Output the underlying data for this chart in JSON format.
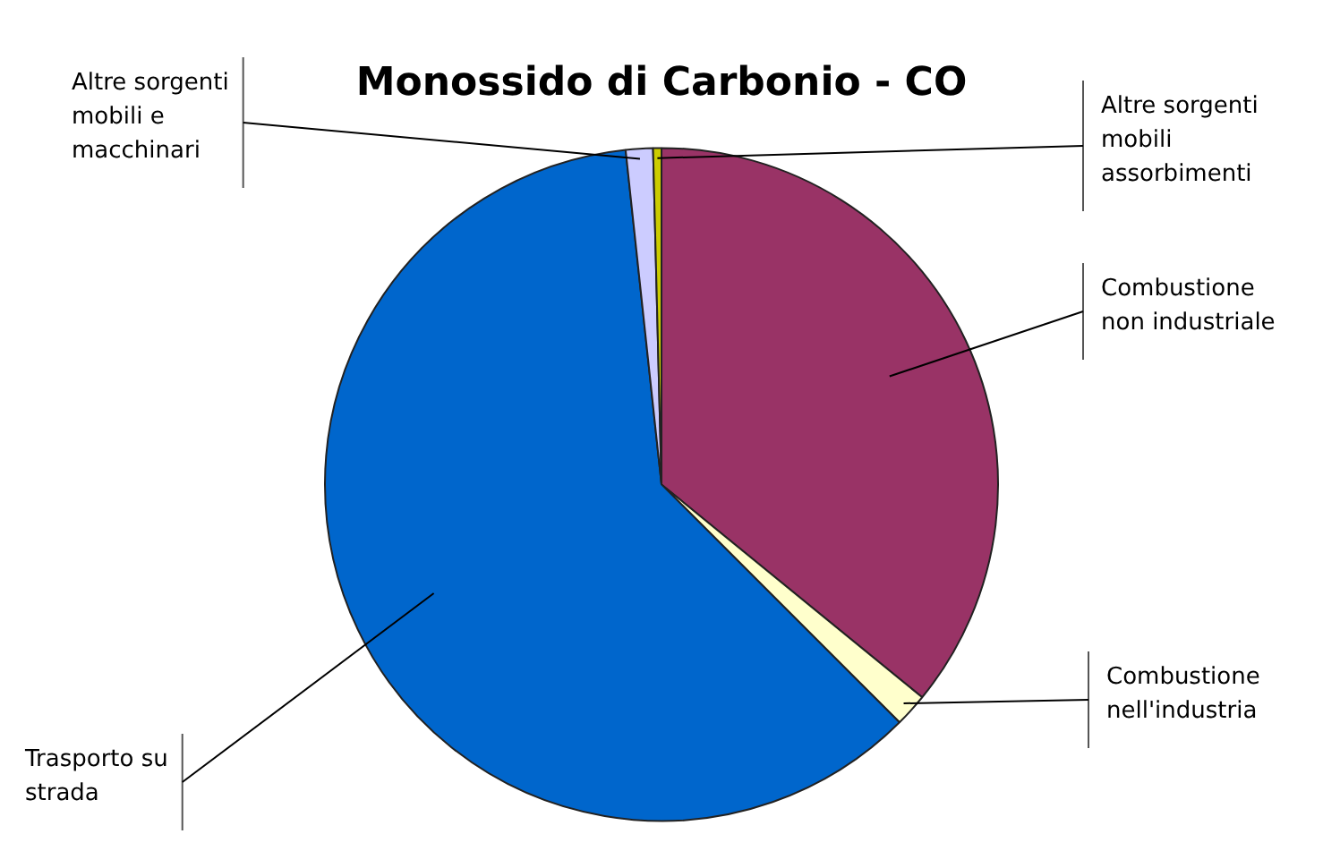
{
  "chart_data": {
    "type": "pie",
    "title": "Monossido di Carbonio - CO",
    "categories": [
      "Combustione non industriale",
      "Combustione nell'industria",
      "Trasporto su strada",
      "Altre sorgenti mobili e macchinari",
      "Altre sorgenti mobili assorbimenti"
    ],
    "values": [
      35.9,
      1.6,
      60.8,
      1.3,
      0.4
    ],
    "colors": [
      "#993366",
      "#ffffcc",
      "#0066cc",
      "#ccccff",
      "#cccc00"
    ],
    "legend": false
  }
}
